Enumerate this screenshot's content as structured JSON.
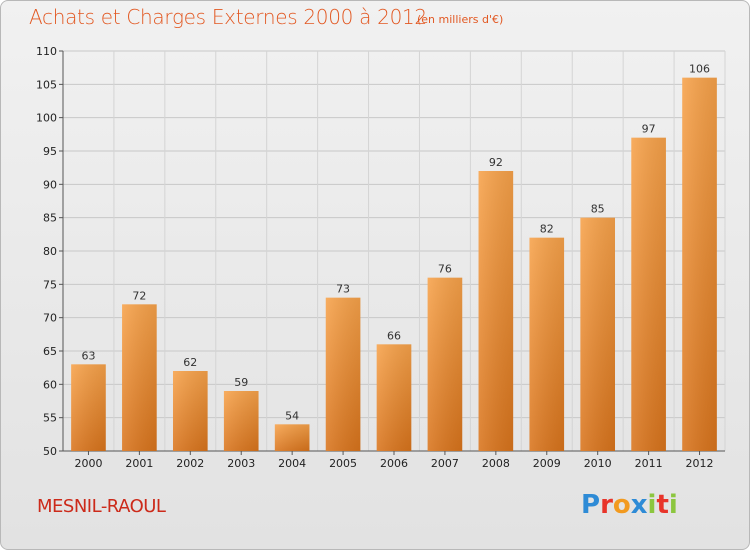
{
  "header": {
    "title": "Achats et Charges Externes 2000 à 2012",
    "subtitle": "(en milliers d'€)"
  },
  "footer": {
    "commune": "MESNIL-RAOUL",
    "brand": "Proxiti",
    "brand_letters": [
      {
        "ch": "P",
        "color": "#2e8bd6"
      },
      {
        "ch": "r",
        "color": "#e8342a"
      },
      {
        "ch": "o",
        "color": "#f29a1f"
      },
      {
        "ch": "x",
        "color": "#2e8bd6"
      },
      {
        "ch": "i",
        "color": "#8cc63f"
      },
      {
        "ch": "t",
        "color": "#e8342a"
      },
      {
        "ch": "i",
        "color": "#8cc63f"
      }
    ]
  },
  "chart_data": {
    "type": "bar",
    "title": "Achats et Charges Externes 2000 à 2012",
    "subtitle": "(en milliers d'€)",
    "categories": [
      "2000",
      "2001",
      "2002",
      "2003",
      "2004",
      "2005",
      "2006",
      "2007",
      "2008",
      "2009",
      "2010",
      "2011",
      "2012"
    ],
    "values": [
      63,
      72,
      62,
      59,
      54,
      73,
      66,
      76,
      92,
      82,
      85,
      97,
      106
    ],
    "ylim": [
      50,
      110
    ],
    "yticks": [
      50,
      55,
      60,
      65,
      70,
      75,
      80,
      85,
      90,
      95,
      100,
      105,
      110
    ],
    "grid": true,
    "bar_color": "#f08a2c",
    "data_labels": true
  }
}
